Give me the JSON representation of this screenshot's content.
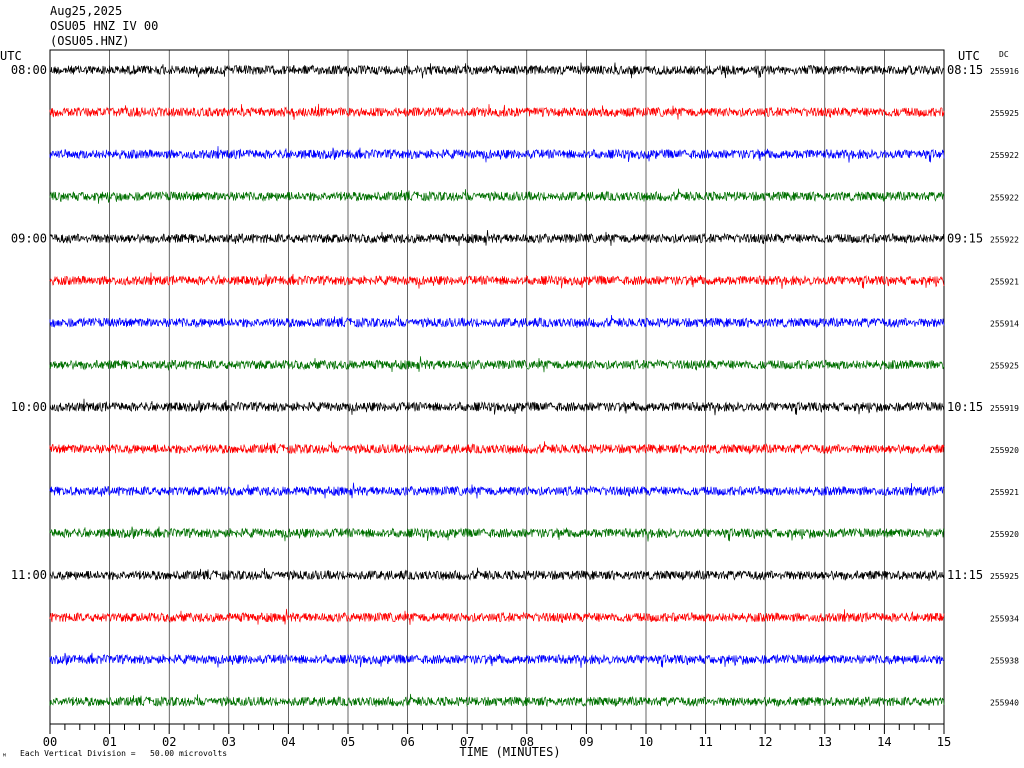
{
  "header": {
    "date": "Aug25,2025",
    "station": "OSU05 HNZ IV 00",
    "channel_code": "(OSU05.HNZ)"
  },
  "labels": {
    "utc_left": "UTC",
    "utc_right": "UTC",
    "dc": "DC",
    "xlabel": "TIME (MINUTES)",
    "footer_scale": "Each Vertical Division =   50.00 microvolts"
  },
  "chart_data": {
    "type": "line",
    "title": "OSU05 HNZ IV 00",
    "xlabel": "TIME (MINUTES)",
    "x_ticks": [
      "00",
      "01",
      "02",
      "03",
      "04",
      "05",
      "06",
      "07",
      "08",
      "09",
      "10",
      "11",
      "12",
      "13",
      "14",
      "15"
    ],
    "xlim": [
      0,
      15
    ],
    "trace_colors": [
      "#000000",
      "#ff0000",
      "#0000ff",
      "#007000"
    ],
    "grid": true,
    "left_time_labels": [
      "08:00",
      "",
      "",
      "",
      "09:00",
      "",
      "",
      "",
      "10:00",
      "",
      "",
      "",
      "11:00",
      "",
      "",
      ""
    ],
    "right_time_labels": [
      "08:15",
      "",
      "",
      "",
      "09:15",
      "",
      "",
      "",
      "10:15",
      "",
      "",
      "",
      "11:15",
      "",
      "",
      ""
    ],
    "dc_offsets": [
      "255916",
      "255925",
      "255922",
      "255922",
      "255922",
      "255921",
      "255914",
      "255925",
      "255919",
      "255920",
      "255921",
      "255920",
      "255925",
      "255934",
      "255938",
      "255940"
    ]
  }
}
